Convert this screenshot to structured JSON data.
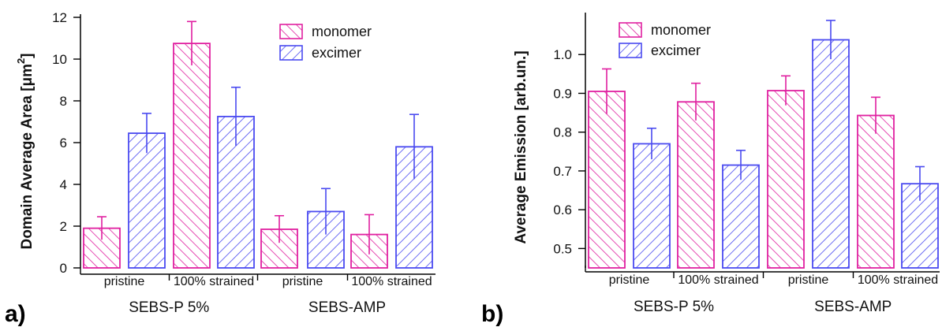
{
  "figure": {
    "panel_a_letter": "a)",
    "panel_b_letter": "b)"
  },
  "chart_data": [
    {
      "type": "bar",
      "panel": "a)",
      "ylabel": "Domain Average Area  [μm²]",
      "ylabel_main": "Domain Average Area  [μm",
      "ylabel_sup": "2",
      "ylabel_end": "]",
      "ylim": [
        0,
        12
      ],
      "yticks": [
        0,
        2,
        4,
        6,
        8,
        10,
        12
      ],
      "groups": [
        "SEBS-P 5%",
        "SEBS-AMP"
      ],
      "categories": [
        "pristine",
        "100% strained",
        "pristine",
        "100% strained"
      ],
      "series": [
        {
          "name": "monomer",
          "color": "#e020a0",
          "values": [
            1.9,
            10.75,
            1.85,
            1.6
          ],
          "errors": [
            0.55,
            1.05,
            0.65,
            0.95
          ]
        },
        {
          "name": "excimer",
          "color": "#4a4af0",
          "values": [
            6.45,
            7.25,
            2.7,
            5.8
          ],
          "errors": [
            0.95,
            1.4,
            1.1,
            1.55
          ]
        }
      ],
      "legend": "top-right",
      "grid": false
    },
    {
      "type": "bar",
      "panel": "b)",
      "ylabel": "Average Emission  [arb.un.]",
      "ylim": [
        0.45,
        1.1
      ],
      "yticks": [
        "0.5",
        "0.6",
        "0.7",
        "0.8",
        "0.9",
        "1.0"
      ],
      "groups": [
        "SEBS-P 5%",
        "SEBS-AMP"
      ],
      "categories": [
        "pristine",
        "100% strained",
        "pristine",
        "100% strained"
      ],
      "series": [
        {
          "name": "monomer",
          "color": "#e020a0",
          "values": [
            0.905,
            0.878,
            0.907,
            0.843
          ],
          "errors": [
            0.058,
            0.048,
            0.038,
            0.047
          ]
        },
        {
          "name": "excimer",
          "color": "#4a4af0",
          "values": [
            0.77,
            0.715,
            1.038,
            0.667
          ],
          "errors": [
            0.04,
            0.038,
            0.05,
            0.044
          ]
        }
      ],
      "legend": "top-left",
      "grid": false
    }
  ]
}
